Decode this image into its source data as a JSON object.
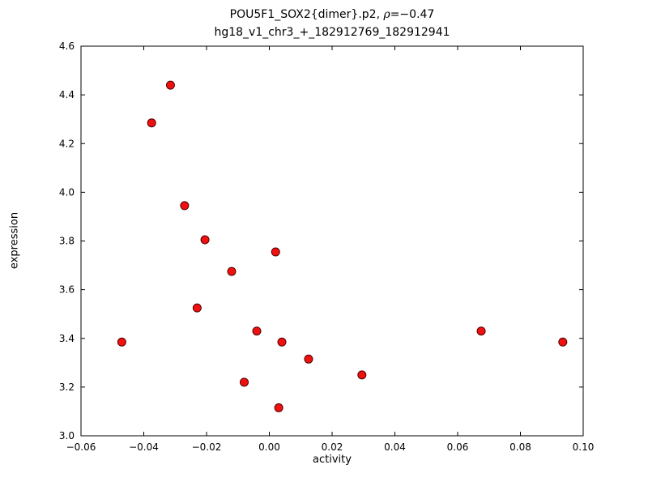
{
  "chart_data": {
    "type": "scatter",
    "title": "POU5F1_SOX2{dimer}.p2, ρ=−0.47",
    "title_parts": {
      "prefix": "POU5F1_SOX2{dimer}.p2, ",
      "rho": "ρ",
      "suffix": "=−0.47"
    },
    "subtitle": "hg18_v1_chr3_+_182912769_182912941",
    "xlabel": "activity",
    "ylabel": "expression",
    "xlim": [
      -0.06,
      0.1
    ],
    "ylim": [
      3.0,
      4.6
    ],
    "grid": false,
    "legend": "none",
    "xticks": {
      "values": [
        -0.06,
        -0.04,
        -0.02,
        0.0,
        0.02,
        0.04,
        0.06,
        0.08,
        0.1
      ],
      "labels": [
        "−0.06",
        "−0.04",
        "−0.02",
        "0.00",
        "0.02",
        "0.04",
        "0.06",
        "0.08",
        "0.10"
      ]
    },
    "yticks": {
      "values": [
        3.0,
        3.2,
        3.4,
        3.6,
        3.8,
        4.0,
        4.2,
        4.4,
        4.6
      ],
      "labels": [
        "3.0",
        "3.2",
        "3.4",
        "3.6",
        "3.8",
        "4.0",
        "4.2",
        "4.4",
        "4.6"
      ]
    },
    "marker": {
      "shape": "circle",
      "fill": "#f01010",
      "stroke": "#500000",
      "stroke_width": 1,
      "radius": 5
    },
    "axis_color": "#000000",
    "points": [
      [
        -0.047,
        3.385
      ],
      [
        -0.0375,
        4.285
      ],
      [
        -0.0315,
        4.44
      ],
      [
        -0.027,
        3.945
      ],
      [
        -0.023,
        3.525
      ],
      [
        -0.0205,
        3.805
      ],
      [
        -0.012,
        3.675
      ],
      [
        -0.008,
        3.22
      ],
      [
        -0.004,
        3.43
      ],
      [
        0.002,
        3.755
      ],
      [
        0.003,
        3.115
      ],
      [
        0.004,
        3.385
      ],
      [
        0.0125,
        3.315
      ],
      [
        0.0295,
        3.25
      ],
      [
        0.0675,
        3.43
      ],
      [
        0.0935,
        3.385
      ]
    ]
  }
}
